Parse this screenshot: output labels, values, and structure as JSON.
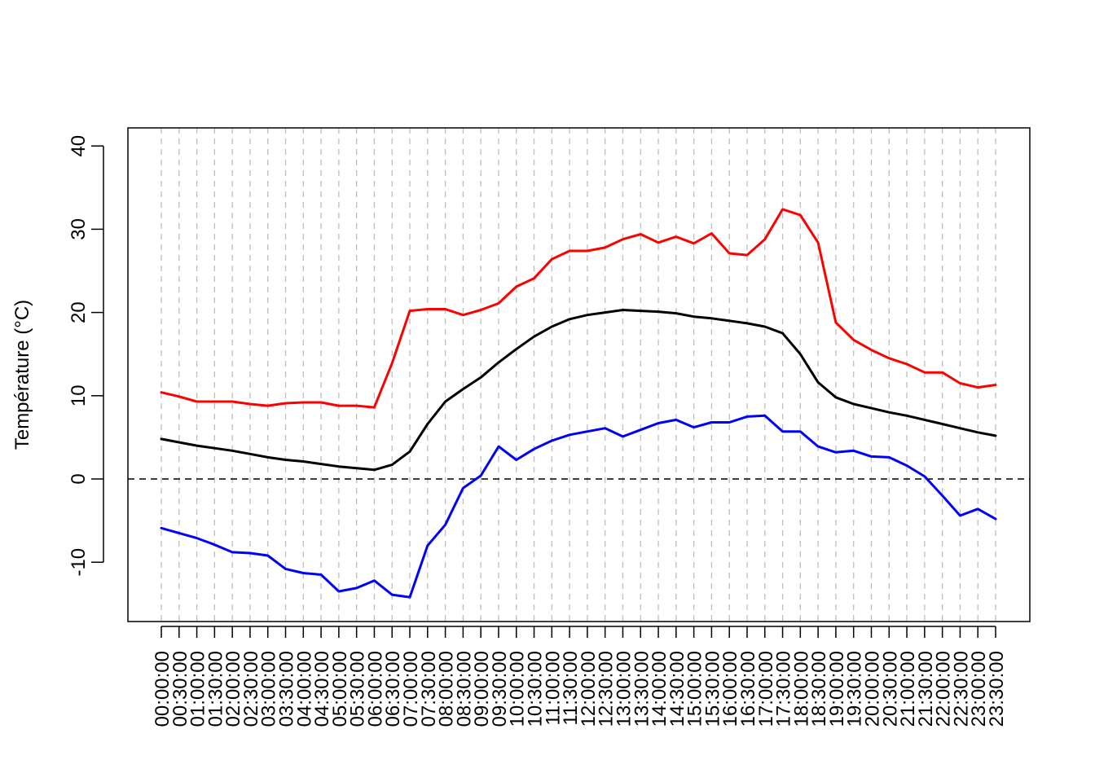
{
  "chart_data": {
    "type": "line",
    "title": "",
    "xlabel": "",
    "ylabel": "Température (°C)",
    "ylim": [
      -17,
      42
    ],
    "yticks": [
      -10,
      0,
      10,
      20,
      30,
      40
    ],
    "ytick_labels": [
      "-10",
      "0",
      "10",
      "20",
      "30",
      "40"
    ],
    "reference_line": {
      "y": 0,
      "style": "dashed",
      "color": "#000000"
    },
    "vertical_grid": {
      "style": "dashed",
      "color": "#bebebe"
    },
    "categories": [
      "00:00:00",
      "00:30:00",
      "01:00:00",
      "01:30:00",
      "02:00:00",
      "02:30:00",
      "03:00:00",
      "03:30:00",
      "04:00:00",
      "04:30:00",
      "05:00:00",
      "05:30:00",
      "06:00:00",
      "06:30:00",
      "07:00:00",
      "07:30:00",
      "08:00:00",
      "08:30:00",
      "09:00:00",
      "09:30:00",
      "10:00:00",
      "10:30:00",
      "11:00:00",
      "11:30:00",
      "12:00:00",
      "12:30:00",
      "13:00:00",
      "13:30:00",
      "14:00:00",
      "14:30:00",
      "15:00:00",
      "15:30:00",
      "16:00:00",
      "16:30:00",
      "17:00:00",
      "17:30:00",
      "18:00:00",
      "18:30:00",
      "19:00:00",
      "19:30:00",
      "20:00:00",
      "20:30:00",
      "21:00:00",
      "21:30:00",
      "22:00:00",
      "22:30:00",
      "23:00:00",
      "23:30:00"
    ],
    "series": [
      {
        "color": "#ff0000",
        "values": [
          10.4,
          9.9,
          9.3,
          9.3,
          9.3,
          9.0,
          8.8,
          9.1,
          9.2,
          9.2,
          8.8,
          8.8,
          8.6,
          13.9,
          20.2,
          20.4,
          20.4,
          19.7,
          20.3,
          21.1,
          23.1,
          24.1,
          26.4,
          27.4,
          27.4,
          27.8,
          28.8,
          29.4,
          28.4,
          29.1,
          28.3,
          29.5,
          27.1,
          26.9,
          28.8,
          32.4,
          31.7,
          28.4,
          18.8,
          16.7,
          15.5,
          14.5,
          13.8,
          12.8,
          12.8,
          11.5,
          11.0,
          11.3
        ]
      },
      {
        "color": "#000000",
        "values": [
          4.8,
          4.4,
          4.0,
          3.7,
          3.4,
          3.0,
          2.6,
          2.3,
          2.1,
          1.8,
          1.5,
          1.3,
          1.1,
          1.7,
          3.3,
          6.6,
          9.3,
          10.8,
          12.2,
          14.0,
          15.6,
          17.1,
          18.3,
          19.2,
          19.7,
          20.0,
          20.3,
          20.2,
          20.1,
          19.9,
          19.5,
          19.3,
          19.0,
          18.7,
          18.3,
          17.5,
          15.0,
          11.6,
          9.8,
          9.0,
          8.5,
          8.0,
          7.6,
          7.1,
          6.6,
          6.1,
          5.6,
          5.2
        ]
      },
      {
        "color": "#0000ff",
        "values": [
          -5.9,
          -6.5,
          -7.1,
          -7.9,
          -8.8,
          -8.9,
          -9.2,
          -10.8,
          -11.3,
          -11.5,
          -13.5,
          -13.1,
          -12.2,
          -13.9,
          -14.2,
          -8.0,
          -5.5,
          -1.1,
          0.4,
          3.9,
          2.3,
          3.6,
          4.6,
          5.3,
          5.7,
          6.1,
          5.1,
          5.9,
          6.7,
          7.1,
          6.2,
          6.8,
          6.8,
          7.5,
          7.6,
          5.7,
          5.7,
          3.9,
          3.2,
          3.4,
          2.7,
          2.6,
          1.6,
          0.3,
          -2.0,
          -4.4,
          -3.6,
          -4.8
        ]
      }
    ]
  }
}
